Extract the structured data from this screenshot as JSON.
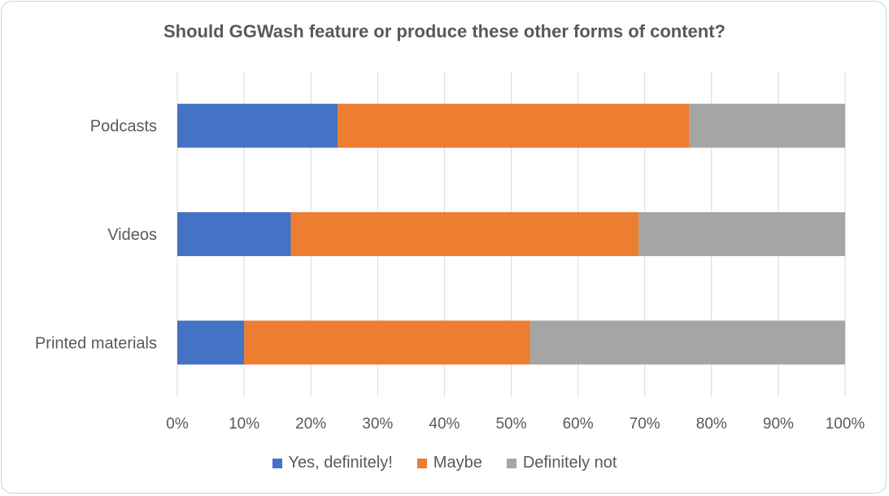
{
  "chart_data": {
    "type": "bar",
    "orientation": "horizontal",
    "stacked": true,
    "title": "Should GGWash  feature or produce these other forms of content?",
    "categories": [
      "Podcasts",
      "Videos",
      "Printed materials"
    ],
    "series": [
      {
        "name": "Yes, definitely!",
        "color": "#4472C4",
        "values": [
          24,
          17,
          10
        ]
      },
      {
        "name": "Maybe",
        "color": "#ED7D31",
        "values": [
          52.7,
          52.1,
          42.8
        ]
      },
      {
        "name": "Definitely not",
        "color": "#A5A5A5",
        "values": [
          23.3,
          30.9,
          47.2
        ]
      }
    ],
    "x_ticks": [
      "0%",
      "10%",
      "20%",
      "30%",
      "40%",
      "50%",
      "60%",
      "70%",
      "80%",
      "90%",
      "100%"
    ],
    "xlim": [
      0,
      100
    ],
    "grid": true,
    "legend_position": "bottom"
  }
}
